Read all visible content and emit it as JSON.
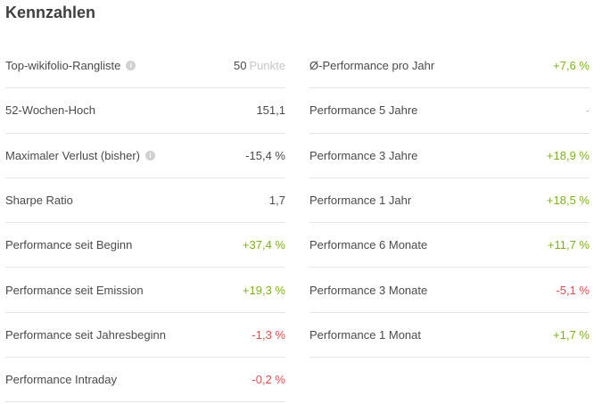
{
  "title": "Kennzahlen",
  "left": [
    {
      "label": "Top-wikifolio-Rangliste",
      "info": true,
      "value": "50",
      "unit": "Punkte",
      "tone": "neutral"
    },
    {
      "label": "52-Wochen-Hoch",
      "info": false,
      "value": "151,1",
      "tone": "neutral"
    },
    {
      "label": "Maximaler Verlust (bisher)",
      "info": true,
      "value": "-15,4 %",
      "tone": "neutral"
    },
    {
      "label": "Sharpe Ratio",
      "info": false,
      "value": "1,7",
      "tone": "neutral"
    },
    {
      "label": "Performance seit Beginn",
      "info": false,
      "value": "+37,4 %",
      "tone": "pos"
    },
    {
      "label": "Performance seit Emission",
      "info": false,
      "value": "+19,3 %",
      "tone": "pos"
    },
    {
      "label": "Performance seit Jahresbeginn",
      "info": false,
      "value": "-1,3 %",
      "tone": "neg"
    },
    {
      "label": "Performance Intraday",
      "info": false,
      "value": "-0,2 %",
      "tone": "neg"
    }
  ],
  "right": [
    {
      "label": "Ø-Performance pro Jahr",
      "value": "+7,6 %",
      "tone": "pos"
    },
    {
      "label": "Performance 5 Jahre",
      "value": "-",
      "tone": "empty"
    },
    {
      "label": "Performance 3 Jahre",
      "value": "+18,9 %",
      "tone": "pos"
    },
    {
      "label": "Performance 1 Jahr",
      "value": "+18,5 %",
      "tone": "pos"
    },
    {
      "label": "Performance 6 Monate",
      "value": "+11,7 %",
      "tone": "pos"
    },
    {
      "label": "Performance 3 Monate",
      "value": "-5,1 %",
      "tone": "neg"
    },
    {
      "label": "Performance 1 Monat",
      "value": "+1,7 %",
      "tone": "pos"
    }
  ],
  "icons": {
    "info": "info-circle-icon"
  },
  "colors": {
    "positive": "#7ab317",
    "negative": "#e24b4b"
  }
}
